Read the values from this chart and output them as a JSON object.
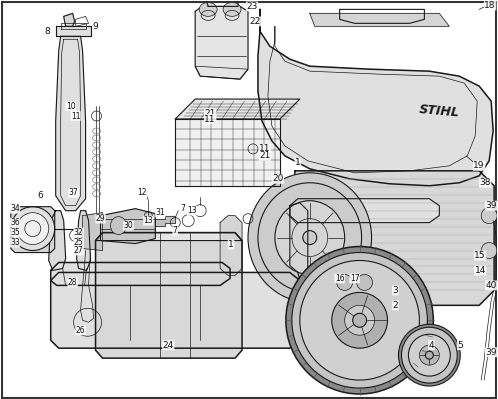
{
  "background_color": "#ffffff",
  "line_color": "#1a1a1a",
  "text_color": "#111111",
  "fig_width": 4.98,
  "fig_height": 3.99,
  "dpi": 100,
  "border_color": "#333333"
}
